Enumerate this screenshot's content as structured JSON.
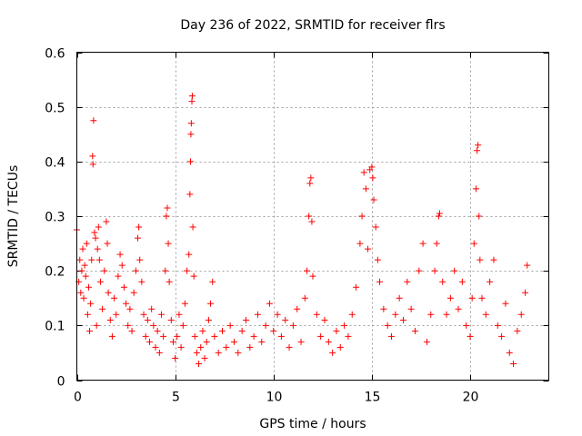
{
  "chart_data": {
    "type": "scatter",
    "title": "Day 236 of 2022, SRMTID for receiver flrs",
    "xlabel": "GPS time / hours",
    "ylabel": "SRMTID / TECUs",
    "xlim": [
      0,
      24
    ],
    "ylim": [
      0,
      0.6
    ],
    "x_ticks": [
      "0",
      "5",
      "10",
      "15",
      "20"
    ],
    "x_tick_values": [
      0,
      5,
      10,
      15,
      20
    ],
    "y_ticks": [
      "0",
      "0.1",
      "0.2",
      "0.3",
      "0.4",
      "0.5",
      "0.6"
    ],
    "y_tick_values": [
      0,
      0.1,
      0.2,
      0.3,
      0.4,
      0.5,
      0.6
    ],
    "grid": true,
    "marker": "plus",
    "color": "#ff0000",
    "series": [
      {
        "name": "SRMTID",
        "points": [
          [
            0.0,
            0.275
          ],
          [
            0.1,
            0.18
          ],
          [
            0.15,
            0.22
          ],
          [
            0.2,
            0.16
          ],
          [
            0.25,
            0.2
          ],
          [
            0.3,
            0.24
          ],
          [
            0.35,
            0.15
          ],
          [
            0.4,
            0.21
          ],
          [
            0.45,
            0.19
          ],
          [
            0.5,
            0.25
          ],
          [
            0.55,
            0.12
          ],
          [
            0.6,
            0.17
          ],
          [
            0.65,
            0.09
          ],
          [
            0.7,
            0.14
          ],
          [
            0.75,
            0.22
          ],
          [
            0.8,
            0.41
          ],
          [
            0.82,
            0.395
          ],
          [
            0.85,
            0.475
          ],
          [
            0.9,
            0.27
          ],
          [
            0.95,
            0.26
          ],
          [
            1.0,
            0.1
          ],
          [
            1.05,
            0.24
          ],
          [
            1.1,
            0.28
          ],
          [
            1.15,
            0.22
          ],
          [
            1.2,
            0.18
          ],
          [
            1.3,
            0.13
          ],
          [
            1.4,
            0.2
          ],
          [
            1.5,
            0.29
          ],
          [
            1.55,
            0.25
          ],
          [
            1.6,
            0.16
          ],
          [
            1.7,
            0.11
          ],
          [
            1.8,
            0.08
          ],
          [
            1.9,
            0.15
          ],
          [
            2.0,
            0.12
          ],
          [
            2.1,
            0.19
          ],
          [
            2.2,
            0.23
          ],
          [
            2.3,
            0.21
          ],
          [
            2.4,
            0.17
          ],
          [
            2.5,
            0.14
          ],
          [
            2.6,
            0.1
          ],
          [
            2.7,
            0.13
          ],
          [
            2.8,
            0.09
          ],
          [
            2.9,
            0.16
          ],
          [
            3.0,
            0.2
          ],
          [
            3.1,
            0.26
          ],
          [
            3.15,
            0.28
          ],
          [
            3.2,
            0.22
          ],
          [
            3.3,
            0.18
          ],
          [
            3.4,
            0.12
          ],
          [
            3.5,
            0.08
          ],
          [
            3.6,
            0.11
          ],
          [
            3.7,
            0.07
          ],
          [
            3.8,
            0.13
          ],
          [
            3.9,
            0.1
          ],
          [
            4.0,
            0.06
          ],
          [
            4.1,
            0.09
          ],
          [
            4.2,
            0.05
          ],
          [
            4.3,
            0.12
          ],
          [
            4.4,
            0.08
          ],
          [
            4.5,
            0.2
          ],
          [
            4.55,
            0.3
          ],
          [
            4.6,
            0.315
          ],
          [
            4.65,
            0.25
          ],
          [
            4.7,
            0.18
          ],
          [
            4.8,
            0.11
          ],
          [
            4.9,
            0.07
          ],
          [
            5.0,
            0.04
          ],
          [
            5.1,
            0.08
          ],
          [
            5.2,
            0.12
          ],
          [
            5.3,
            0.06
          ],
          [
            5.4,
            0.1
          ],
          [
            5.5,
            0.14
          ],
          [
            5.6,
            0.2
          ],
          [
            5.7,
            0.23
          ],
          [
            5.75,
            0.34
          ],
          [
            5.78,
            0.4
          ],
          [
            5.8,
            0.45
          ],
          [
            5.82,
            0.47
          ],
          [
            5.85,
            0.51
          ],
          [
            5.87,
            0.52
          ],
          [
            5.9,
            0.28
          ],
          [
            5.95,
            0.19
          ],
          [
            6.0,
            0.08
          ],
          [
            6.1,
            0.05
          ],
          [
            6.2,
            0.03
          ],
          [
            6.3,
            0.06
          ],
          [
            6.4,
            0.09
          ],
          [
            6.5,
            0.04
          ],
          [
            6.6,
            0.07
          ],
          [
            6.7,
            0.11
          ],
          [
            6.8,
            0.14
          ],
          [
            6.9,
            0.18
          ],
          [
            7.0,
            0.08
          ],
          [
            7.2,
            0.05
          ],
          [
            7.4,
            0.09
          ],
          [
            7.6,
            0.06
          ],
          [
            7.8,
            0.1
          ],
          [
            8.0,
            0.07
          ],
          [
            8.2,
            0.05
          ],
          [
            8.4,
            0.09
          ],
          [
            8.6,
            0.11
          ],
          [
            8.8,
            0.06
          ],
          [
            9.0,
            0.08
          ],
          [
            9.2,
            0.12
          ],
          [
            9.4,
            0.07
          ],
          [
            9.6,
            0.1
          ],
          [
            9.8,
            0.14
          ],
          [
            10.0,
            0.09
          ],
          [
            10.2,
            0.12
          ],
          [
            10.4,
            0.08
          ],
          [
            10.6,
            0.11
          ],
          [
            10.8,
            0.06
          ],
          [
            11.0,
            0.1
          ],
          [
            11.2,
            0.13
          ],
          [
            11.4,
            0.07
          ],
          [
            11.6,
            0.15
          ],
          [
            11.7,
            0.2
          ],
          [
            11.8,
            0.3
          ],
          [
            11.85,
            0.36
          ],
          [
            11.9,
            0.37
          ],
          [
            11.95,
            0.29
          ],
          [
            12.0,
            0.19
          ],
          [
            12.2,
            0.12
          ],
          [
            12.4,
            0.08
          ],
          [
            12.6,
            0.11
          ],
          [
            12.8,
            0.07
          ],
          [
            13.0,
            0.05
          ],
          [
            13.2,
            0.09
          ],
          [
            13.4,
            0.06
          ],
          [
            13.6,
            0.1
          ],
          [
            13.8,
            0.08
          ],
          [
            14.0,
            0.12
          ],
          [
            14.2,
            0.17
          ],
          [
            14.4,
            0.25
          ],
          [
            14.5,
            0.3
          ],
          [
            14.6,
            0.38
          ],
          [
            14.7,
            0.35
          ],
          [
            14.8,
            0.24
          ],
          [
            14.9,
            0.385
          ],
          [
            15.0,
            0.39
          ],
          [
            15.05,
            0.37
          ],
          [
            15.1,
            0.33
          ],
          [
            15.2,
            0.28
          ],
          [
            15.3,
            0.22
          ],
          [
            15.4,
            0.18
          ],
          [
            15.6,
            0.13
          ],
          [
            15.8,
            0.1
          ],
          [
            16.0,
            0.08
          ],
          [
            16.2,
            0.12
          ],
          [
            16.4,
            0.15
          ],
          [
            16.6,
            0.11
          ],
          [
            16.8,
            0.18
          ],
          [
            17.0,
            0.13
          ],
          [
            17.2,
            0.09
          ],
          [
            17.4,
            0.2
          ],
          [
            17.6,
            0.25
          ],
          [
            17.8,
            0.07
          ],
          [
            18.0,
            0.12
          ],
          [
            18.2,
            0.2
          ],
          [
            18.3,
            0.25
          ],
          [
            18.4,
            0.3
          ],
          [
            18.45,
            0.305
          ],
          [
            18.6,
            0.18
          ],
          [
            18.8,
            0.12
          ],
          [
            19.0,
            0.15
          ],
          [
            19.2,
            0.2
          ],
          [
            19.4,
            0.13
          ],
          [
            19.6,
            0.18
          ],
          [
            19.8,
            0.1
          ],
          [
            20.0,
            0.08
          ],
          [
            20.1,
            0.15
          ],
          [
            20.2,
            0.25
          ],
          [
            20.3,
            0.35
          ],
          [
            20.35,
            0.42
          ],
          [
            20.4,
            0.43
          ],
          [
            20.45,
            0.3
          ],
          [
            20.5,
            0.22
          ],
          [
            20.6,
            0.15
          ],
          [
            20.8,
            0.12
          ],
          [
            21.0,
            0.18
          ],
          [
            21.2,
            0.22
          ],
          [
            21.4,
            0.1
          ],
          [
            21.6,
            0.08
          ],
          [
            21.8,
            0.14
          ],
          [
            22.0,
            0.05
          ],
          [
            22.2,
            0.03
          ],
          [
            22.4,
            0.09
          ],
          [
            22.6,
            0.12
          ],
          [
            22.8,
            0.16
          ],
          [
            22.9,
            0.21
          ]
        ]
      }
    ]
  }
}
